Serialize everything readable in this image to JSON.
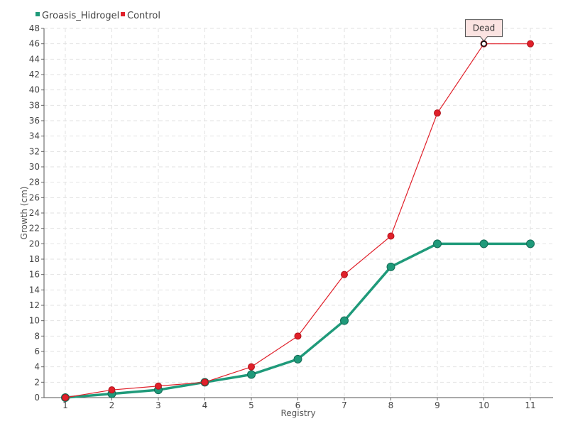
{
  "chart_data": {
    "type": "line",
    "title": "",
    "xlabel": "Registry",
    "ylabel": "Growth (cm)",
    "x": [
      1,
      2,
      3,
      4,
      5,
      6,
      7,
      8,
      9,
      10,
      11
    ],
    "ylim": [
      0,
      48
    ],
    "ytick_step": 2,
    "grid": true,
    "legend_position": "top-left",
    "series": [
      {
        "name": "Groasis_Hidrogel",
        "color": "#1f9a7a",
        "values": [
          0,
          0.5,
          1,
          2,
          3,
          5,
          10,
          17,
          20,
          20,
          20
        ]
      },
      {
        "name": "Control",
        "color": "#e0202a",
        "values": [
          0,
          1,
          1.5,
          2,
          4,
          8,
          16,
          21,
          37,
          46,
          46
        ]
      }
    ],
    "annotations": [
      {
        "text": "Dead",
        "series": "Control",
        "x": 10,
        "y": 46
      }
    ]
  }
}
